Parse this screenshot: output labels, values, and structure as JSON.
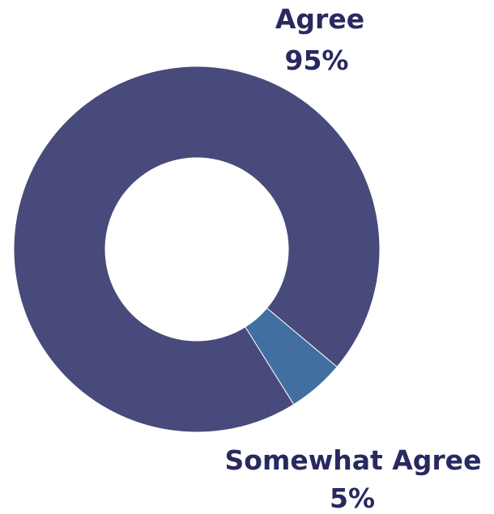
{
  "chart_data": {
    "type": "pie",
    "variant": "donut",
    "legend": "none",
    "slices": [
      {
        "category": "Agree",
        "value": 95,
        "value_label": "95%",
        "color": "#474a7a"
      },
      {
        "category": "Somewhat Agree",
        "value": 5,
        "value_label": "5%",
        "color": "#426ea0"
      }
    ]
  }
}
